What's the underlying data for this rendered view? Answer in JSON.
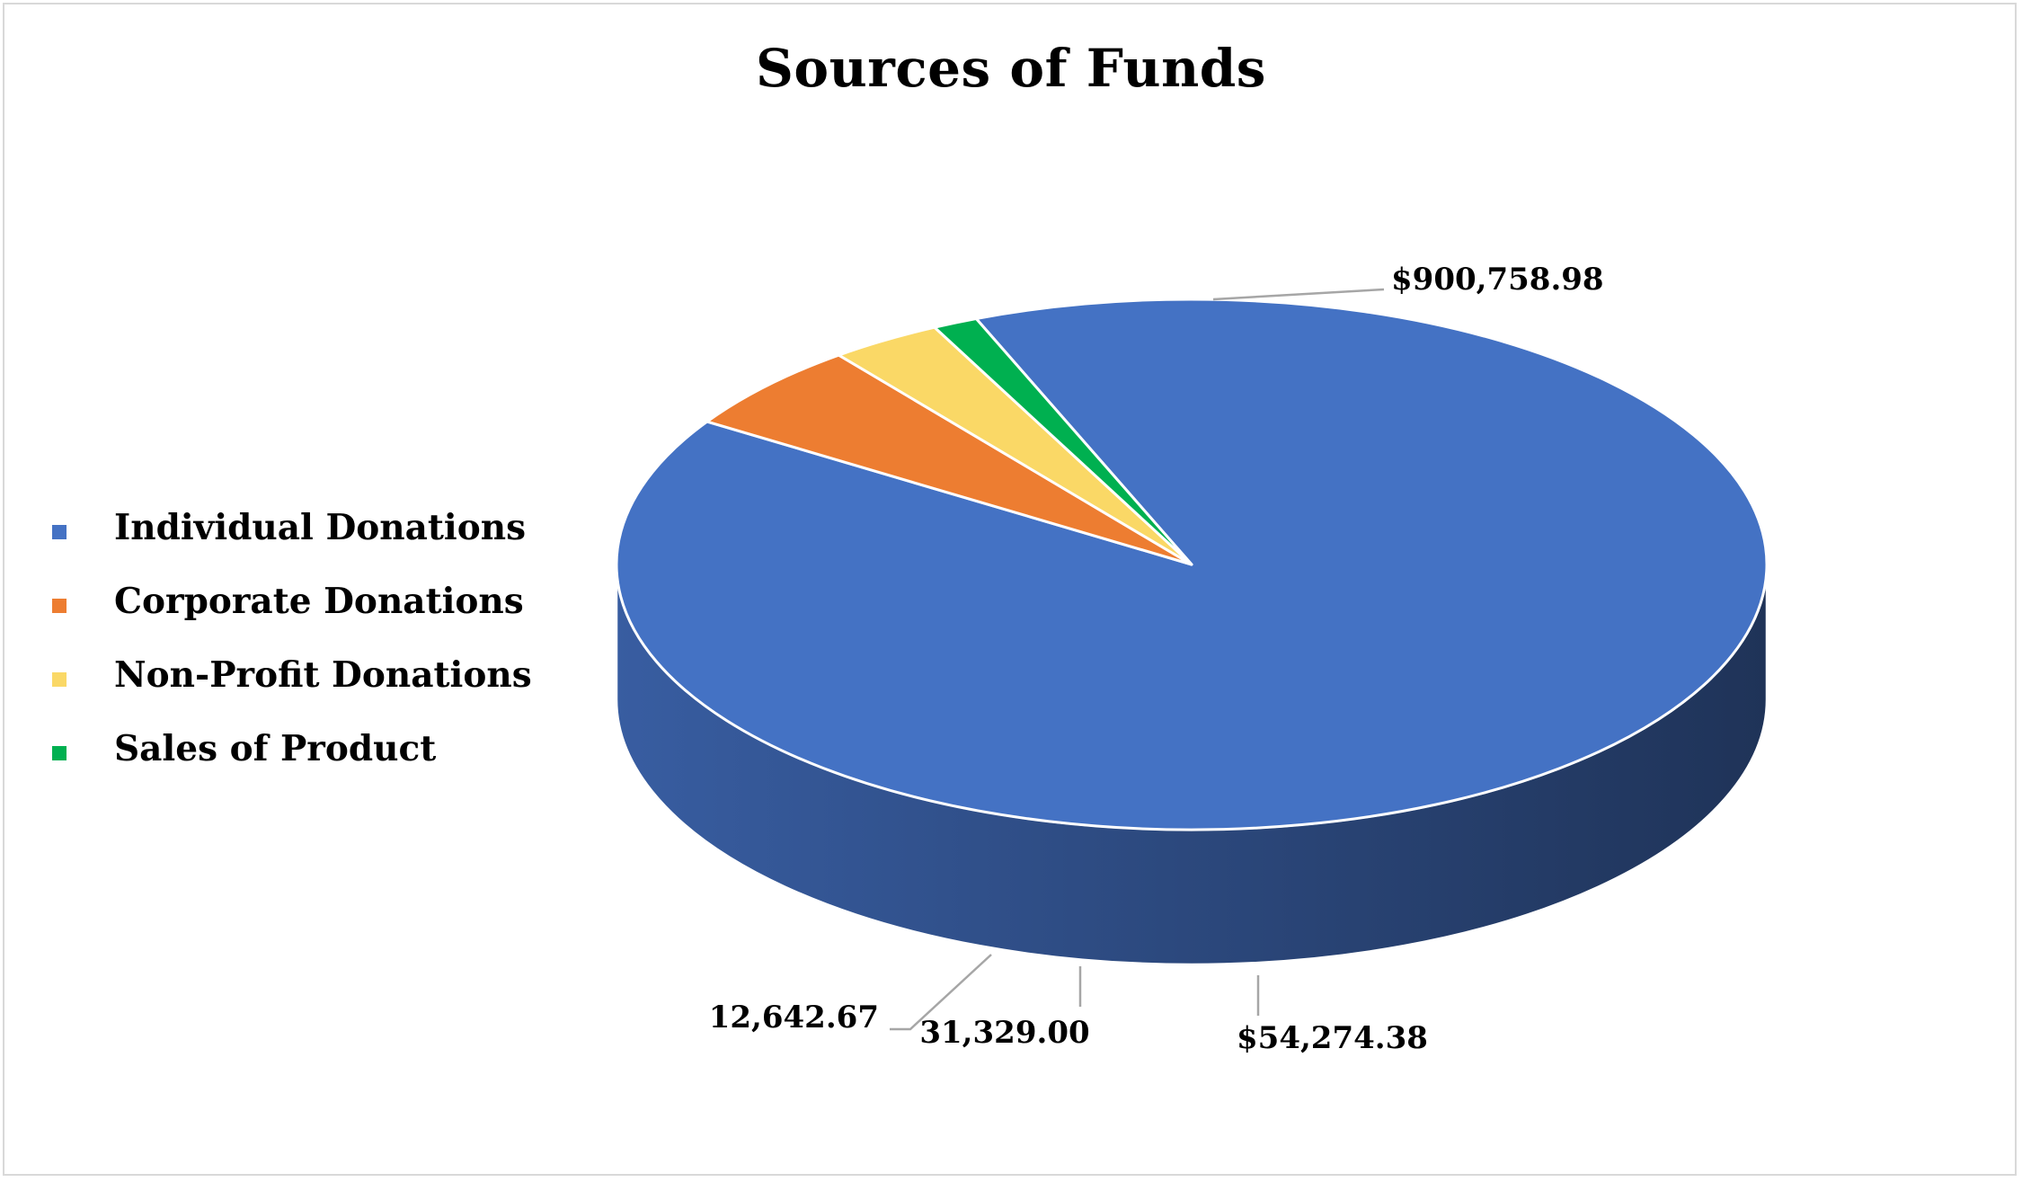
{
  "chart_data": {
    "type": "pie",
    "style": "3d",
    "title": "Sources of Funds",
    "categories": [
      "Individual Donations",
      "Corporate Donations",
      "Non-Profit Donations",
      "Sales of Product"
    ],
    "values": [
      900758.98,
      54274.38,
      31329.0,
      12642.67
    ],
    "data_labels": [
      "$900,758.98",
      "$54,274.38",
      "31,329.00",
      "12,642.67"
    ],
    "colors": [
      "#4472C4",
      "#ED7D31",
      "#FAD866",
      "#00B050"
    ],
    "legend_position": "left"
  }
}
